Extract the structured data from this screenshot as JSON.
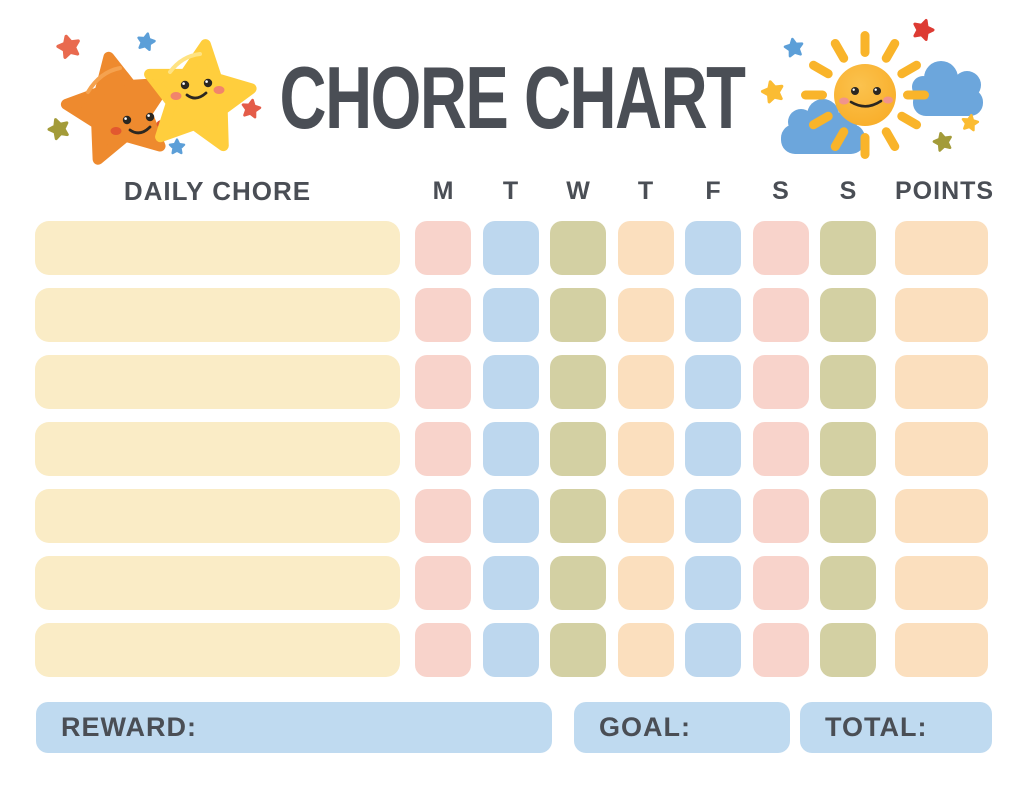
{
  "title": "CHORE CHART",
  "table": {
    "chore_header": "DAILY CHORE",
    "day_headers": [
      "M",
      "T",
      "W",
      "T",
      "F",
      "S",
      "S"
    ],
    "points_header": "POINTS",
    "num_rows": 7,
    "row_pattern": [
      "pink",
      "blue",
      "olive",
      "peach",
      "blue",
      "pink",
      "olive"
    ],
    "chore_cell_color": "cream",
    "points_cell_color": "peach"
  },
  "footer": {
    "reward_label": "REWARD:",
    "goal_label": "GOAL:",
    "total_label": "TOTAL:"
  },
  "colors": {
    "text": "#4A4E55",
    "cream": "#FAECC6",
    "pink": "#F8D3CB",
    "blue": "#BDD7EE",
    "olive": "#D3D0A3",
    "peach": "#FBDFBE",
    "bar_blue": "#BFDAF0",
    "star_orange": "#EE8A2E",
    "star_yellow": "#FFCE3D",
    "deco_red": "#E45C49",
    "deco_crimson": "#DD3B33",
    "deco_blue": "#5C9FD8",
    "deco_olive": "#A39B39",
    "sun_yellow": "#F9B42A",
    "cloud_blue": "#6CA6DC"
  },
  "icons": {
    "left_decoration": "two-smiling-stars-with-sparkle-stars",
    "right_decoration": "smiling-sun-with-clouds-and-stars"
  }
}
